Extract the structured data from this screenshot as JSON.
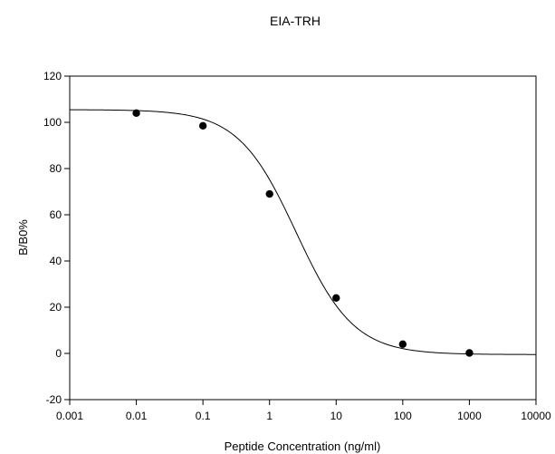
{
  "chart_data": {
    "type": "scatter",
    "title": "EIA-TRH",
    "xlabel": "Peptide Concentration (ng/ml)",
    "ylabel": "B/B0%",
    "x_scale": "log",
    "xlim": [
      0.001,
      10000
    ],
    "ylim": [
      -20,
      120
    ],
    "x_ticks": [
      0.001,
      0.01,
      0.1,
      1,
      10,
      100,
      1000,
      10000
    ],
    "x_tick_labels": [
      "0.001",
      "0.01",
      "0.1",
      "1",
      "10",
      "100",
      "1000",
      "10000"
    ],
    "y_ticks": [
      -20,
      0,
      20,
      40,
      60,
      80,
      100,
      120
    ],
    "y_tick_labels": [
      "-20",
      "0",
      "20",
      "40",
      "60",
      "80",
      "100",
      "120"
    ],
    "grid": false,
    "legend": "none",
    "series": [
      {
        "points": [
          {
            "x": 0.01,
            "y": 104
          },
          {
            "x": 0.1,
            "y": 98.5
          },
          {
            "x": 1,
            "y": 69
          },
          {
            "x": 10,
            "y": 24
          },
          {
            "x": 100,
            "y": 4
          },
          {
            "x": 1000,
            "y": 0.2
          }
        ],
        "marker_color": "#000000"
      }
    ],
    "fit_curve": {
      "model": "4-parameter logistic",
      "top": 105.5,
      "bottom": -0.5,
      "ec50": 2.5,
      "hill": 1,
      "color": "#000000"
    }
  }
}
